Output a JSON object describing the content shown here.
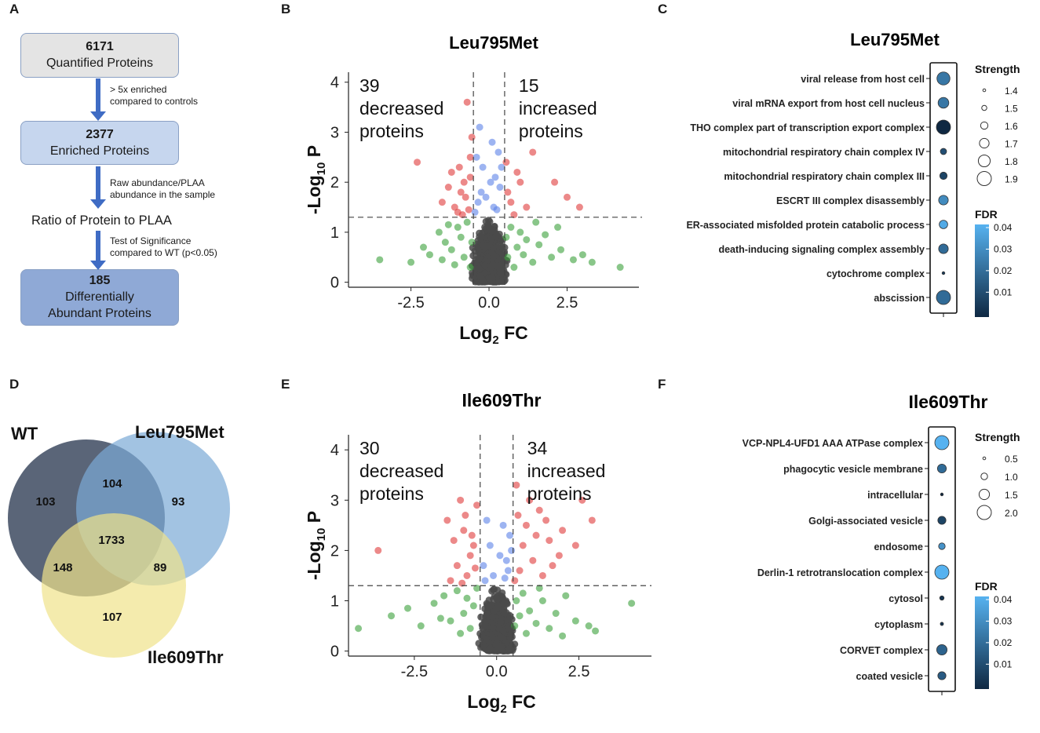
{
  "panels": {
    "a": "A",
    "b": "B",
    "c": "C",
    "d": "D",
    "e": "E",
    "f": "F"
  },
  "flowchart": {
    "box1": {
      "count": "6171",
      "label": "Quantified Proteins"
    },
    "step1": {
      "line1": "> 5x enriched",
      "line2": "compared to controls"
    },
    "box2": {
      "count": "2377",
      "label": "Enriched Proteins"
    },
    "step2": {
      "line1": "Raw abundance/PLAA",
      "line2": "abundance in the sample"
    },
    "ratio": "Ratio of Protein to PLAA",
    "step3": {
      "line1": "Test of Significance",
      "line2": "compared to WT (p<0.05)"
    },
    "box3": {
      "count": "185",
      "label1": "Differentially",
      "label2": "Abundant Proteins"
    }
  },
  "volcano_B": {
    "title": "Leu795Met",
    "dec_count": "39",
    "dec_l1": "decreased",
    "dec_l2": "proteins",
    "inc_count": "15",
    "inc_l1": "increased",
    "inc_l2": "proteins",
    "xlabel_main": "Log",
    "xlabel_sub": "2",
    "xlabel_tail": " FC",
    "ylabel_main": "-Log",
    "ylabel_sub": "10",
    "ylabel_tail": " P",
    "xticks": [
      "-2.5",
      "0.0",
      "2.5"
    ],
    "yticks": [
      "0",
      "1",
      "2",
      "3",
      "4"
    ]
  },
  "volcano_E": {
    "title": "Ile609Thr",
    "dec_count": "30",
    "dec_l1": "decreased",
    "dec_l2": "proteins",
    "inc_count": "34",
    "inc_l1": "increased",
    "inc_l2": "proteins",
    "xlabel_main": "Log",
    "xlabel_sub": "2",
    "xlabel_tail": " FC",
    "ylabel_main": "-Log",
    "ylabel_sub": "10",
    "ylabel_tail": " P",
    "xticks": [
      "-2.5",
      "0.0",
      "2.5"
    ],
    "yticks": [
      "0",
      "1",
      "2",
      "3",
      "4"
    ]
  },
  "venn": {
    "label_wt": "WT",
    "label_leu": "Leu795Met",
    "label_ile": "Ile609Thr",
    "wt_only": "103",
    "wt_leu": "104",
    "leu_only": "93",
    "all": "1733",
    "wt_ile": "148",
    "leu_ile": "89",
    "ile_only": "107",
    "colors": {
      "wt": "#3d4a60",
      "leu": "#7aaad6",
      "ile": "#f0e28a"
    }
  },
  "enrich_C": {
    "title": "Leu795Met",
    "strength_title": "Strength",
    "strength_levels": [
      "1.4",
      "1.5",
      "1.6",
      "1.7",
      "1.8",
      "1.9"
    ],
    "fdr_title": "FDR",
    "fdr_ticks": [
      "0.04",
      "0.03",
      "0.02",
      "0.01"
    ]
  },
  "enrich_F": {
    "title": "Ile609Thr",
    "strength_title": "Strength",
    "strength_levels": [
      "0.5",
      "1.0",
      "1.5",
      "2.0"
    ],
    "fdr_title": "FDR",
    "fdr_ticks": [
      "0.04",
      "0.03",
      "0.02",
      "0.01"
    ]
  },
  "chart_data": [
    {
      "type": "scatter",
      "panel": "B",
      "title": "Leu795Met",
      "xlabel": "Log2 FC",
      "ylabel": "-Log10 P",
      "xlim": [
        -4.5,
        4.8
      ],
      "ylim": [
        -0.1,
        4.2
      ],
      "thresholds": {
        "fc": [
          -0.5,
          0.5
        ],
        "p": 1.3
      },
      "series": [
        {
          "name": "significant",
          "color": "#e03a3a",
          "points": [
            [
              -2.3,
              2.4
            ],
            [
              -0.7,
              3.6
            ],
            [
              -1.5,
              1.6
            ],
            [
              -1.2,
              2.2
            ],
            [
              -0.9,
              1.8
            ],
            [
              -1.1,
              1.5
            ],
            [
              -0.8,
              2.0
            ],
            [
              -0.6,
              2.5
            ],
            [
              -1.0,
              1.4
            ],
            [
              -0.75,
              1.7
            ],
            [
              -0.55,
              2.9
            ],
            [
              -0.6,
              2.1
            ],
            [
              -0.85,
              1.35
            ],
            [
              -1.3,
              1.9
            ],
            [
              -0.65,
              1.45
            ],
            [
              -0.95,
              2.3
            ],
            [
              1.4,
              2.6
            ],
            [
              2.1,
              2.0
            ],
            [
              2.9,
              1.5
            ],
            [
              1.0,
              2.0
            ],
            [
              0.55,
              2.4
            ],
            [
              0.6,
              1.8
            ],
            [
              1.2,
              1.5
            ],
            [
              0.8,
              1.35
            ],
            [
              2.5,
              1.7
            ],
            [
              0.7,
              1.6
            ],
            [
              0.9,
              2.2
            ]
          ]
        },
        {
          "name": "fc_only",
          "color": "#5b82e8",
          "points": [
            [
              -0.3,
              3.1
            ],
            [
              0.1,
              2.8
            ],
            [
              0.3,
              2.6
            ],
            [
              -0.2,
              2.3
            ],
            [
              0.2,
              2.1
            ],
            [
              -0.4,
              2.5
            ],
            [
              0.35,
              1.9
            ],
            [
              -0.1,
              1.7
            ],
            [
              0.15,
              1.5
            ],
            [
              -0.35,
              1.6
            ],
            [
              0.4,
              2.3
            ],
            [
              0.05,
              2.0
            ],
            [
              -0.25,
              1.8
            ],
            [
              0.25,
              1.45
            ],
            [
              -0.45,
              1.4
            ]
          ]
        },
        {
          "name": "p_only",
          "color": "#3aa03a",
          "points": [
            [
              -3.5,
              0.45
            ],
            [
              -2.5,
              0.4
            ],
            [
              -2.1,
              0.7
            ],
            [
              -1.9,
              0.55
            ],
            [
              -1.6,
              1.0
            ],
            [
              -1.5,
              0.45
            ],
            [
              -1.4,
              0.8
            ],
            [
              -1.2,
              0.65
            ],
            [
              -1.0,
              1.1
            ],
            [
              -0.9,
              0.9
            ],
            [
              -0.8,
              0.5
            ],
            [
              -0.7,
              1.2
            ],
            [
              -0.6,
              0.3
            ],
            [
              -1.1,
              0.35
            ],
            [
              -1.3,
              1.15
            ],
            [
              -0.55,
              0.8
            ],
            [
              0.55,
              0.9
            ],
            [
              0.6,
              0.5
            ],
            [
              0.7,
              1.1
            ],
            [
              0.8,
              0.3
            ],
            [
              0.9,
              0.7
            ],
            [
              1.0,
              1.0
            ],
            [
              1.1,
              0.55
            ],
            [
              1.2,
              0.85
            ],
            [
              1.4,
              0.4
            ],
            [
              1.6,
              0.75
            ],
            [
              1.8,
              0.95
            ],
            [
              2.0,
              0.5
            ],
            [
              2.3,
              0.65
            ],
            [
              2.7,
              0.45
            ],
            [
              3.0,
              0.55
            ],
            [
              3.3,
              0.4
            ],
            [
              4.2,
              0.3
            ],
            [
              2.2,
              1.1
            ],
            [
              1.5,
              1.2
            ]
          ]
        },
        {
          "name": "ns",
          "color": "#4a4a4a",
          "points": "dense cloud near origin"
        }
      ]
    },
    {
      "type": "scatter",
      "panel": "E",
      "title": "Ile609Thr",
      "xlabel": "Log2 FC",
      "ylabel": "-Log10 P",
      "xlim": [
        -4.5,
        4.8
      ],
      "ylim": [
        -0.1,
        4.3
      ],
      "thresholds": {
        "fc": [
          -0.5,
          0.5
        ],
        "p": 1.3
      },
      "series": [
        {
          "name": "significant",
          "color": "#e03a3a",
          "points": [
            [
              -3.6,
              2.0
            ],
            [
              -1.1,
              3.0
            ],
            [
              -0.6,
              2.9
            ],
            [
              -1.5,
              2.6
            ],
            [
              -1.3,
              2.2
            ],
            [
              -1.0,
              2.4
            ],
            [
              -0.8,
              1.9
            ],
            [
              -1.2,
              1.7
            ],
            [
              -0.9,
              1.5
            ],
            [
              -0.7,
              2.1
            ],
            [
              -1.4,
              1.4
            ],
            [
              -0.65,
              1.65
            ],
            [
              -0.95,
              2.7
            ],
            [
              -1.05,
              1.35
            ],
            [
              -0.75,
              2.3
            ],
            [
              0.6,
              3.3
            ],
            [
              1.0,
              3.0
            ],
            [
              1.3,
              2.8
            ],
            [
              2.6,
              3.0
            ],
            [
              2.9,
              2.6
            ],
            [
              2.0,
              2.4
            ],
            [
              1.6,
              2.2
            ],
            [
              0.8,
              2.1
            ],
            [
              1.1,
              1.8
            ],
            [
              0.7,
              1.6
            ],
            [
              1.9,
              1.9
            ],
            [
              0.9,
              2.5
            ],
            [
              1.4,
              1.5
            ],
            [
              0.65,
              2.7
            ],
            [
              1.2,
              2.3
            ],
            [
              1.7,
              1.7
            ],
            [
              2.4,
              2.1
            ],
            [
              0.55,
              1.4
            ],
            [
              1.5,
              2.6
            ]
          ]
        },
        {
          "name": "fc_only",
          "color": "#5b82e8",
          "points": [
            [
              -0.3,
              2.6
            ],
            [
              0.2,
              2.5
            ],
            [
              0.4,
              2.3
            ],
            [
              -0.2,
              2.1
            ],
            [
              0.1,
              1.9
            ],
            [
              -0.4,
              1.7
            ],
            [
              0.35,
              1.6
            ],
            [
              -0.1,
              1.5
            ],
            [
              0.25,
              1.45
            ],
            [
              -0.35,
              1.4
            ],
            [
              0.45,
              2.0
            ],
            [
              0.3,
              1.8
            ]
          ]
        },
        {
          "name": "p_only",
          "color": "#3aa03a",
          "points": [
            [
              -4.2,
              0.45
            ],
            [
              -3.2,
              0.7
            ],
            [
              -2.7,
              0.85
            ],
            [
              -2.3,
              0.5
            ],
            [
              -1.9,
              0.95
            ],
            [
              -1.6,
              1.1
            ],
            [
              -1.4,
              0.6
            ],
            [
              -1.2,
              1.2
            ],
            [
              -1.0,
              0.75
            ],
            [
              -0.9,
              1.05
            ],
            [
              -0.8,
              0.45
            ],
            [
              -0.7,
              0.9
            ],
            [
              -0.6,
              1.25
            ],
            [
              -1.1,
              0.35
            ],
            [
              -1.7,
              0.65
            ],
            [
              0.55,
              0.5
            ],
            [
              0.6,
              1.0
            ],
            [
              0.7,
              0.7
            ],
            [
              0.8,
              1.15
            ],
            [
              0.9,
              0.35
            ],
            [
              1.0,
              0.8
            ],
            [
              1.2,
              0.55
            ],
            [
              1.4,
              1.0
            ],
            [
              1.6,
              0.45
            ],
            [
              1.8,
              0.75
            ],
            [
              2.1,
              1.1
            ],
            [
              2.4,
              0.6
            ],
            [
              2.8,
              0.5
            ],
            [
              3.0,
              0.4
            ],
            [
              4.1,
              0.95
            ],
            [
              1.3,
              1.25
            ],
            [
              2.0,
              0.3
            ]
          ]
        },
        {
          "name": "ns",
          "color": "#4a4a4a",
          "points": "dense cloud near origin"
        }
      ]
    },
    {
      "type": "scatter",
      "panel": "C",
      "title": "Leu795Met",
      "subtype": "dot_enrichment",
      "categories": [
        "viral release from host cell",
        "viral mRNA export from host cell nucleus",
        "THO complex part of transcription export complex",
        "mitochondrial respiratory chain complex IV",
        "mitochondrial respiratory chain complex III",
        "ESCRT III complex disassembly",
        "ER-associated misfolded protein catabolic process",
        "death-inducing signaling complex assembly",
        "cytochrome complex",
        "abscission"
      ],
      "strength": [
        1.85,
        1.75,
        1.9,
        1.55,
        1.6,
        1.7,
        1.65,
        1.7,
        1.4,
        1.9
      ],
      "fdr": [
        0.025,
        0.025,
        0.005,
        0.015,
        0.012,
        0.03,
        0.038,
        0.022,
        0.01,
        0.022
      ],
      "strength_range": [
        1.4,
        1.9
      ],
      "fdr_range": [
        0.005,
        0.04
      ]
    },
    {
      "type": "scatter",
      "panel": "F",
      "title": "Ile609Thr",
      "subtype": "dot_enrichment",
      "categories": [
        "VCP-NPL4-UFD1 AAA ATPase complex",
        "phagocytic vesicle membrane",
        "intracellular",
        "Golgi-associated vesicle",
        "endosome",
        "Derlin-1 retrotranslocation complex",
        "cytosol",
        "cytoplasm",
        "CORVET complex",
        "coated vesicle"
      ],
      "strength": [
        2.0,
        1.3,
        0.5,
        1.2,
        1.0,
        2.0,
        0.7,
        0.55,
        1.5,
        1.2
      ],
      "fdr": [
        0.04,
        0.022,
        0.005,
        0.012,
        0.032,
        0.04,
        0.008,
        0.008,
        0.02,
        0.018
      ],
      "strength_range": [
        0.5,
        2.0
      ],
      "fdr_range": [
        0.005,
        0.04
      ]
    }
  ]
}
